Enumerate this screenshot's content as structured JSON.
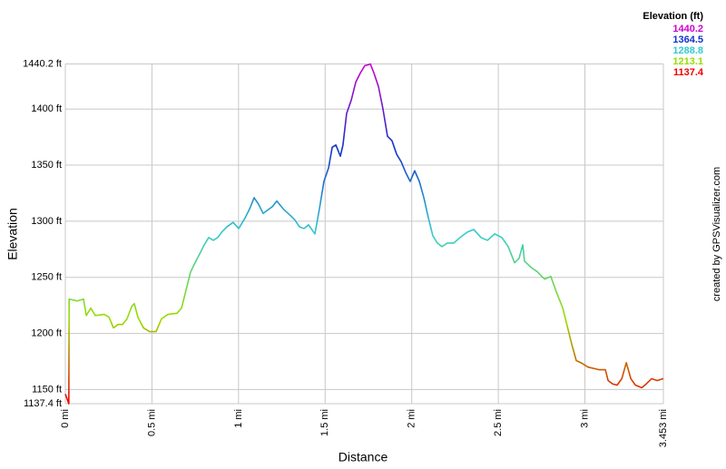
{
  "chart_data": {
    "type": "line",
    "x_label": "Distance",
    "y_label": "Elevation",
    "credit": "created by GPSVisualizer.com",
    "legend_title": "Elevation (ft)",
    "color_scale": [
      {
        "value": 1440.2,
        "color": "#cc00cc"
      },
      {
        "value": 1364.5,
        "color": "#1133cc"
      },
      {
        "value": 1288.8,
        "color": "#33cccc"
      },
      {
        "value": 1213.1,
        "color": "#99dd00"
      },
      {
        "value": 1137.4,
        "color": "#ee0000"
      }
    ],
    "xlim": [
      0,
      3.453
    ],
    "ylim": [
      1137.4,
      1440.2
    ],
    "xticks": [
      {
        "value": 0,
        "label": "0 mi"
      },
      {
        "value": 0.5,
        "label": "0.5 mi"
      },
      {
        "value": 1,
        "label": "1 mi"
      },
      {
        "value": 1.5,
        "label": "1.5 mi"
      },
      {
        "value": 2,
        "label": "2 mi"
      },
      {
        "value": 2.5,
        "label": "2.5 mi"
      },
      {
        "value": 3,
        "label": "3 mi"
      },
      {
        "value": 3.453,
        "label": "3.453 mi"
      }
    ],
    "yticks": [
      {
        "value": 1137.4,
        "label": "1137.4 ft"
      },
      {
        "value": 1150,
        "label": "1150 ft"
      },
      {
        "value": 1200,
        "label": "1200 ft"
      },
      {
        "value": 1250,
        "label": "1250 ft"
      },
      {
        "value": 1300,
        "label": "1300 ft"
      },
      {
        "value": 1350,
        "label": "1350 ft"
      },
      {
        "value": 1400,
        "label": "1400 ft"
      },
      {
        "value": 1440.2,
        "label": "1440.2 ft"
      }
    ],
    "grid": true,
    "x": [
      0,
      0.02,
      0.022,
      0.068,
      0.105,
      0.121,
      0.147,
      0.173,
      0.225,
      0.252,
      0.278,
      0.304,
      0.33,
      0.356,
      0.383,
      0.398,
      0.419,
      0.451,
      0.487,
      0.524,
      0.555,
      0.592,
      0.645,
      0.671,
      0.697,
      0.723,
      0.749,
      0.776,
      0.802,
      0.828,
      0.854,
      0.88,
      0.907,
      0.933,
      0.969,
      1.001,
      1.038,
      1.064,
      1.09,
      1.116,
      1.142,
      1.195,
      1.221,
      1.258,
      1.3,
      1.326,
      1.352,
      1.378,
      1.404,
      1.441,
      1.467,
      1.493,
      1.52,
      1.541,
      1.562,
      1.588,
      1.603,
      1.624,
      1.651,
      1.677,
      1.703,
      1.729,
      1.75,
      1.761,
      1.782,
      1.808,
      1.834,
      1.86,
      1.886,
      1.913,
      1.939,
      1.965,
      1.991,
      2.017,
      2.044,
      2.07,
      2.096,
      2.122,
      2.148,
      2.175,
      2.206,
      2.243,
      2.279,
      2.321,
      2.358,
      2.4,
      2.437,
      2.479,
      2.52,
      2.557,
      2.594,
      2.62,
      2.641,
      2.651,
      2.688,
      2.725,
      2.767,
      2.803,
      2.835,
      2.872,
      2.898,
      2.924,
      2.95,
      2.976,
      3.018,
      3.081,
      3.118,
      3.134,
      3.16,
      3.186,
      3.213,
      3.239,
      3.265,
      3.291,
      3.328,
      3.354,
      3.385,
      3.417,
      3.453
    ],
    "values": [
      1146,
      1137.4,
      1230.6,
      1229,
      1230.6,
      1216,
      1222.6,
      1216,
      1217,
      1214.5,
      1205,
      1208,
      1208,
      1213,
      1224,
      1226.6,
      1214.5,
      1205,
      1201.6,
      1201.6,
      1213,
      1217,
      1218,
      1222.6,
      1238.7,
      1254.8,
      1263,
      1271,
      1279,
      1285.5,
      1283,
      1285.5,
      1291,
      1295,
      1299,
      1293.5,
      1303,
      1311,
      1321,
      1315,
      1307,
      1313,
      1318,
      1311,
      1305,
      1301,
      1295,
      1293.5,
      1296.8,
      1288.7,
      1311,
      1335.5,
      1347.6,
      1366,
      1368,
      1358,
      1368,
      1396,
      1408,
      1424,
      1432,
      1438.7,
      1439.5,
      1440.2,
      1432,
      1420,
      1400,
      1375.8,
      1371.8,
      1359.7,
      1353,
      1343.5,
      1335.5,
      1345,
      1335.5,
      1321,
      1303,
      1287,
      1280.6,
      1277.4,
      1280.6,
      1280.6,
      1285.5,
      1290.3,
      1292.7,
      1285.5,
      1283,
      1288.7,
      1285.5,
      1277.4,
      1263,
      1267,
      1279,
      1264.5,
      1259,
      1255,
      1248.4,
      1250.8,
      1237,
      1222.6,
      1206.5,
      1190.3,
      1175.8,
      1174,
      1170,
      1167.7,
      1167.7,
      1158,
      1155,
      1154,
      1159.7,
      1174,
      1159.7,
      1154,
      1151.6,
      1155,
      1159.7,
      1158,
      1159.7
    ]
  }
}
